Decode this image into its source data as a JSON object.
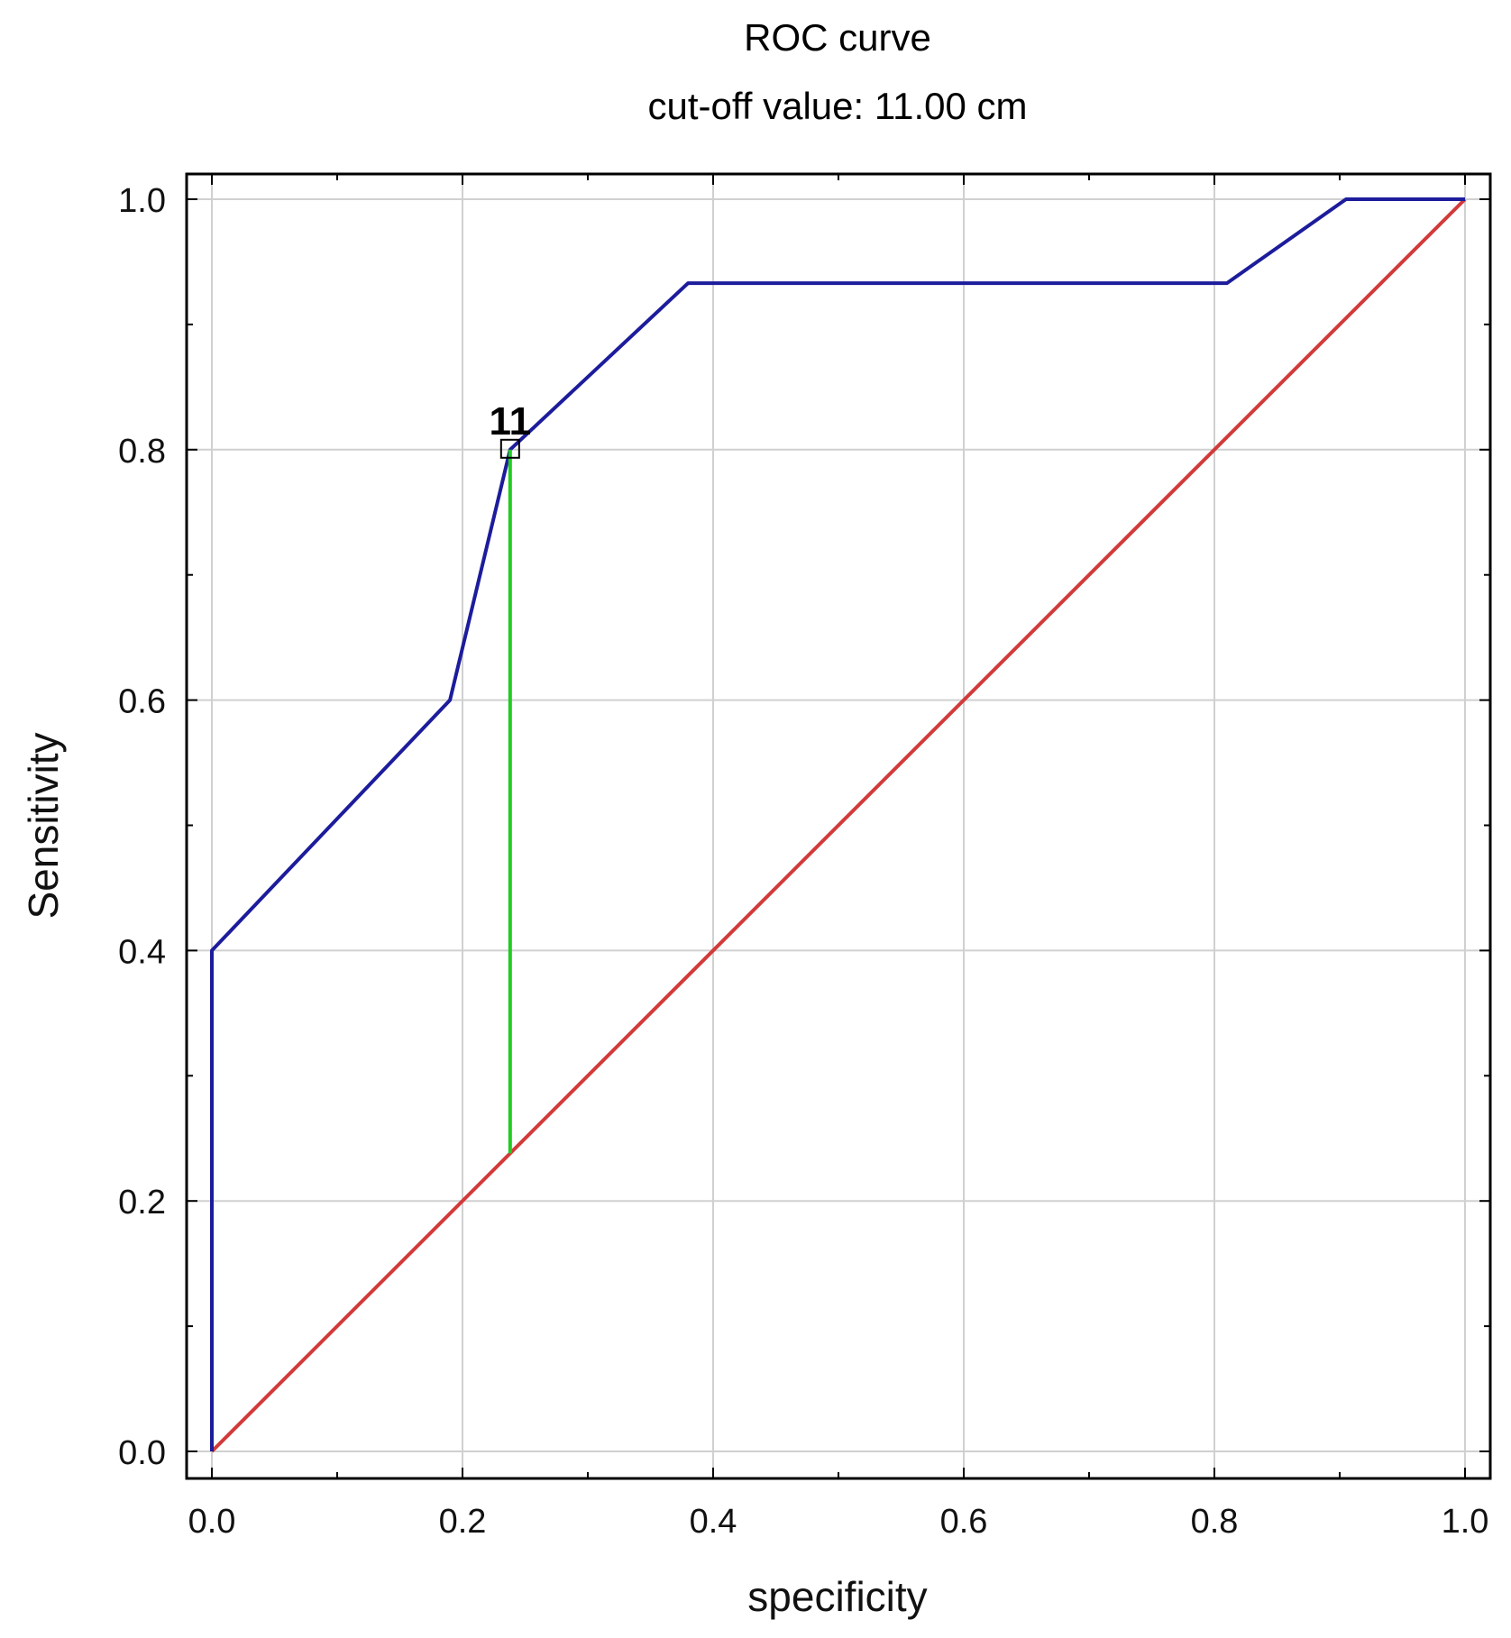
{
  "chart_data": {
    "type": "line",
    "title": "ROC curve",
    "subtitle": "cut-off value: 11.00 cm",
    "xlabel": "specificity",
    "ylabel": "Sensitivity",
    "xlim": [
      0,
      1
    ],
    "ylim": [
      0,
      1
    ],
    "grid": true,
    "x_ticks": [
      "0.0",
      "0.2",
      "0.4",
      "0.6",
      "0.8",
      "1.0"
    ],
    "y_ticks": [
      "0.0",
      "0.2",
      "0.4",
      "0.6",
      "0.8",
      "1.0"
    ],
    "tick_values": [
      0,
      0.2,
      0.4,
      0.6,
      0.8,
      1.0
    ],
    "series": [
      {
        "color": "#1c1c9c",
        "points": [
          [
            0,
            0
          ],
          [
            0,
            0.4
          ],
          [
            0.19,
            0.6
          ],
          [
            0.238,
            0.8
          ],
          [
            0.38,
            0.933
          ],
          [
            0.81,
            0.933
          ],
          [
            0.905,
            1.0
          ],
          [
            1.0,
            1.0
          ]
        ]
      },
      {
        "color": "#d23a3a",
        "points": [
          [
            0,
            0
          ],
          [
            1,
            1
          ]
        ]
      }
    ],
    "cutoff": {
      "label": "11",
      "x": 0.238,
      "y": 0.8,
      "y_ref": 0.238,
      "line_color": "#22cc22"
    }
  }
}
